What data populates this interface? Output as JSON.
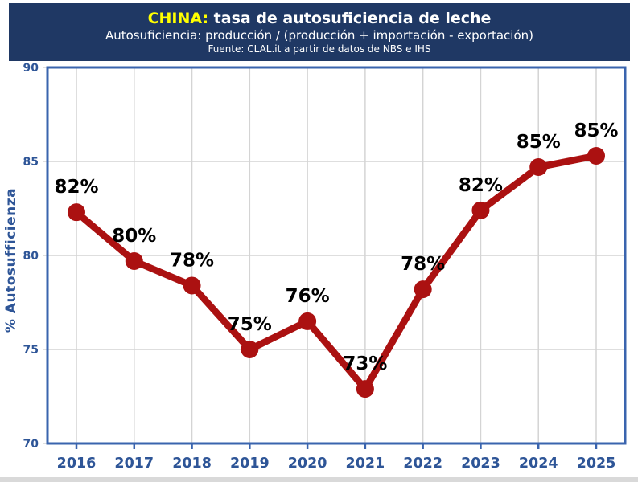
{
  "header": {
    "title_highlight": "CHINA:",
    "title_rest": " tasa de autosuficiencia de leche",
    "subtitle": "Autosuficiencia: producción / (producción + importación - exportación)",
    "source": "Fuente: CLAL.it a partir de datos de NBS e IHS"
  },
  "chart_data": {
    "type": "line",
    "title": "CHINA: tasa de autosuficiencia de leche",
    "subtitle": "Autosuficiencia: producción / (producción + importación - exportación)",
    "source": "Fuente: CLAL.it a partir de datos de NBS e IHS",
    "categories": [
      "2016",
      "2017",
      "2018",
      "2019",
      "2020",
      "2021",
      "2022",
      "2023",
      "2024",
      "2025"
    ],
    "series": [
      {
        "name": "% Autosufficienza",
        "values": [
          82.3,
          79.7,
          78.4,
          75.0,
          76.5,
          72.9,
          78.2,
          82.4,
          84.7,
          85.3
        ],
        "labels": [
          "82%",
          "80%",
          "78%",
          "75%",
          "76%",
          "73%",
          "78%",
          "82%",
          "85%",
          "85%"
        ]
      }
    ],
    "xlabel": "",
    "ylabel": "% Autosufficienza",
    "ylim": [
      70,
      90
    ],
    "yticks": [
      70,
      75,
      80,
      85,
      90
    ],
    "grid": true,
    "legend": "none"
  },
  "colors": {
    "header_bg": "#1F3864",
    "title_accent": "#FFFF00",
    "axis_blue": "#2E5597",
    "frame_blue": "#3A64AE",
    "line_red": "#AB1111",
    "grid_gray": "#D4D4D4",
    "label_black": "#000000",
    "strip_gray": "#D9D9D9"
  }
}
